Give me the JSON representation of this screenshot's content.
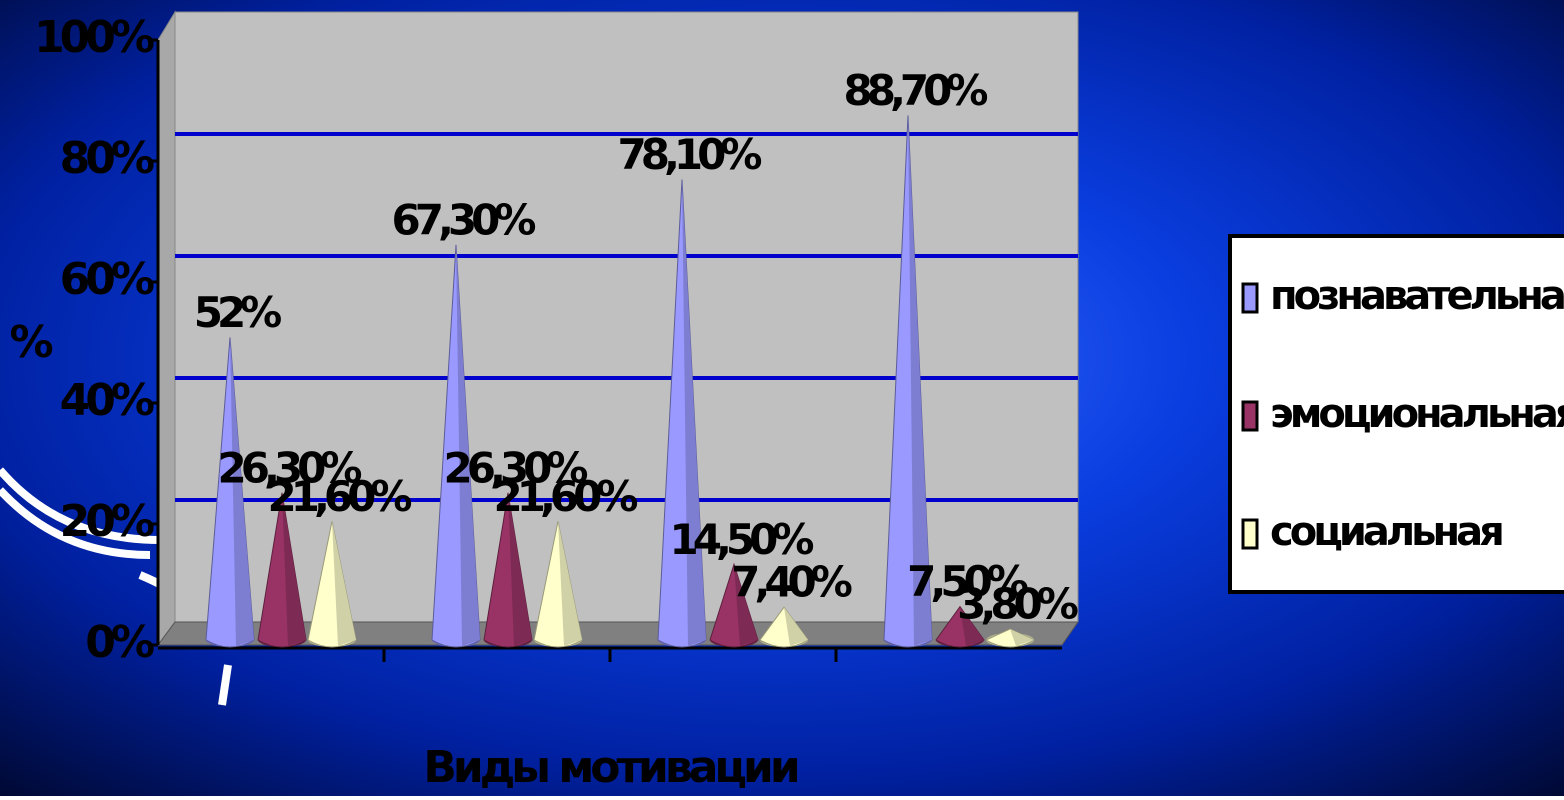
{
  "chart_data": {
    "type": "cone",
    "y_label": "%",
    "x_label": "Виды мотивации",
    "categories": [
      null,
      null,
      null,
      null
    ],
    "series": [
      {
        "name": "познавательная",
        "color": "#9999ff",
        "values": [
          52,
          67.3,
          78.1,
          88.7
        ],
        "value_labels": [
          "52%",
          "67,30%",
          "78,10%",
          "88,70%"
        ]
      },
      {
        "name": "эмоциональная",
        "color": "#993366",
        "values": [
          26.3,
          26.3,
          14.5,
          7.5
        ],
        "value_labels": [
          "26,30%",
          "26,30%",
          "14,50%",
          "7,50%"
        ]
      },
      {
        "name": "социальная",
        "color": "#ffffcc",
        "values": [
          21.6,
          21.6,
          7.4,
          3.8
        ],
        "value_labels": [
          "21,60%",
          "21,60%",
          "7,40%",
          "3,80%"
        ]
      }
    ],
    "ylim": [
      0,
      100
    ],
    "yticks": [
      {
        "value": 0,
        "label": "0%"
      },
      {
        "value": 20,
        "label": "20%"
      },
      {
        "value": 40,
        "label": "40%"
      },
      {
        "value": 60,
        "label": "60%"
      },
      {
        "value": 80,
        "label": "80%"
      },
      {
        "value": 100,
        "label": "100%"
      }
    ],
    "grid": true,
    "grid_color": "#0000cc",
    "legend": "right"
  }
}
